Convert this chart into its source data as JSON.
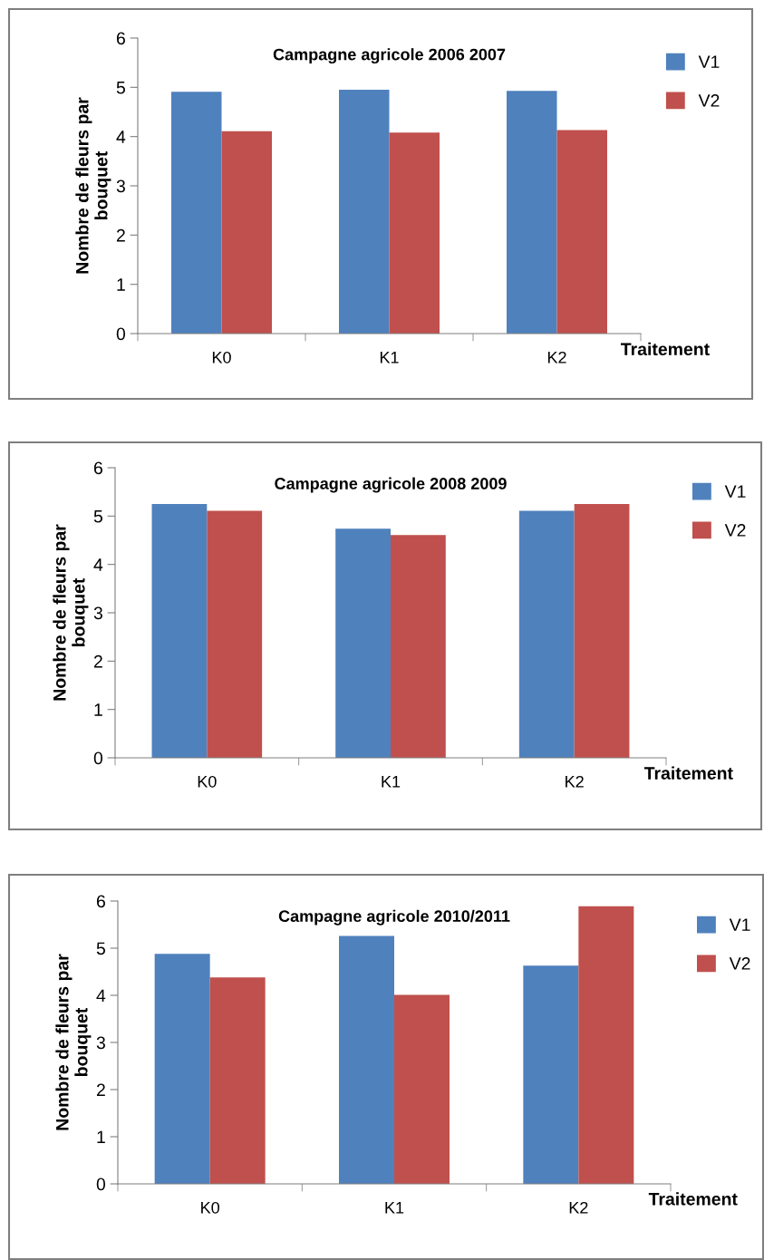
{
  "chart_data": [
    {
      "type": "bar",
      "title": "Campagne agricole 2006 2007",
      "xlabel": "Traitement",
      "ylabel": "Nombre de fleurs par\nbouquet",
      "categories": [
        "K0",
        "K1",
        "K2"
      ],
      "series": [
        {
          "name": "V1",
          "color": "#4f81bd",
          "values": [
            4.91,
            4.95,
            4.93
          ]
        },
        {
          "name": "V2",
          "color": "#c0504d",
          "values": [
            4.11,
            4.08,
            4.13
          ]
        }
      ],
      "ylim": [
        0,
        6
      ],
      "yticks": [
        0,
        1,
        2,
        3,
        4,
        5,
        6
      ],
      "grid": false,
      "legend": "right"
    },
    {
      "type": "bar",
      "title": "Campagne agricole 2008 2009",
      "xlabel": "Traitement",
      "ylabel": "Nombre de fleurs par\nbouquet",
      "categories": [
        "K0",
        "K1",
        "K2"
      ],
      "series": [
        {
          "name": "V1",
          "color": "#4f81bd",
          "values": [
            5.25,
            4.74,
            5.11
          ]
        },
        {
          "name": "V2",
          "color": "#c0504d",
          "values": [
            5.11,
            4.61,
            5.25
          ]
        }
      ],
      "ylim": [
        0,
        6
      ],
      "yticks": [
        0,
        1,
        2,
        3,
        4,
        5,
        6
      ],
      "grid": false,
      "legend": "right"
    },
    {
      "type": "bar",
      "title": "Campagne agricole 2010/2011",
      "xlabel": "Traitement",
      "ylabel": "Nombre de fleurs par\nbouquet",
      "categories": [
        "K0",
        "K1",
        "K2"
      ],
      "series": [
        {
          "name": "V1",
          "color": "#4f81bd",
          "values": [
            4.88,
            5.26,
            4.63
          ]
        },
        {
          "name": "V2",
          "color": "#c0504d",
          "values": [
            4.38,
            4.01,
            5.89
          ]
        }
      ],
      "ylim": [
        0,
        6
      ],
      "yticks": [
        0,
        1,
        2,
        3,
        4,
        5,
        6
      ],
      "grid": false,
      "legend": "right"
    }
  ]
}
